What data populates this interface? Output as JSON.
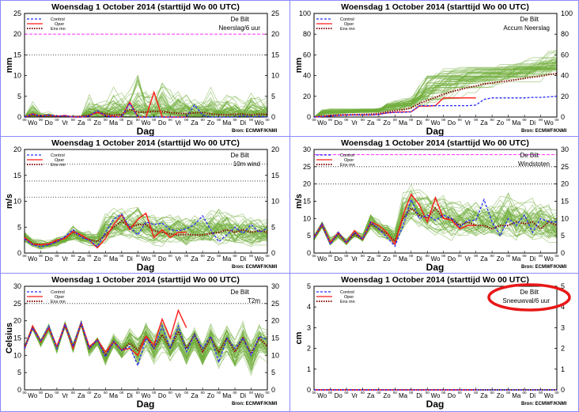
{
  "title": "Woensdag   1 October   2014  (starttijd  Wo 00 UTC)",
  "location": "De Bilt",
  "source": "Bron: ECMWF/KNMI",
  "legend": [
    "Control",
    "Oper",
    "Ens mn"
  ],
  "x_axis": {
    "xlabel": "Dag",
    "tick_label": "00",
    "days": [
      "Wo",
      "Do",
      "Vr",
      "Za",
      "Zo",
      "Ma",
      "Di",
      "Wo",
      "Do",
      "Vr",
      "Za",
      "Zo",
      "Ma",
      "Di",
      "Wo"
    ],
    "step_hours": 12
  },
  "colors": {
    "control": "#2a2aff",
    "oper": "#ff1a1a",
    "ensmean": "#8b1010",
    "ensemble": "#6fae3a",
    "magenta": "#ff44ff",
    "highlight": "#e81818"
  },
  "chart_data": [
    {
      "type": "line",
      "subtitle": "Neerslag/6 uur",
      "ylabel": "mm",
      "ylim": [
        0,
        25
      ],
      "yticks": [
        "0",
        "5",
        "10",
        "15",
        "20",
        "25"
      ],
      "ref_lines": [
        {
          "value": 20,
          "style": "magenta"
        },
        {
          "value": 15,
          "style": "dotted"
        }
      ],
      "skew": 3,
      "control": [
        0,
        0.7,
        0.2,
        0.5,
        0.2,
        0.3,
        0,
        0,
        0.3,
        1.5,
        0.3,
        0,
        0,
        3.3,
        0,
        0,
        0,
        0,
        0,
        0,
        0,
        2.9,
        0.5,
        0,
        0,
        0,
        0,
        0.4,
        0,
        0.2,
        0
      ],
      "oper": [
        0,
        0.8,
        0.2,
        0.5,
        0.2,
        0.4,
        0,
        0,
        0.3,
        1.2,
        0.3,
        0.2,
        0,
        3.6,
        0,
        0,
        6,
        0,
        0,
        0,
        0
      ],
      "ensmean": [
        0,
        0.4,
        0.3,
        0.3,
        0.2,
        0.2,
        0.1,
        0.2,
        0.5,
        1.1,
        0.8,
        0.5,
        0.6,
        1.8,
        1.2,
        1.2,
        1.4,
        1.3,
        1.1,
        0.9,
        0.8,
        1.0,
        1.1,
        0.7,
        0.6,
        0.5,
        0.7,
        0.7,
        0.5,
        0.7,
        0.6
      ],
      "ens_max": [
        0,
        5.5,
        1.5,
        2.5,
        0.5,
        0.5,
        0.3,
        0.5,
        9,
        7,
        6,
        11,
        9,
        10,
        18.5,
        13,
        10,
        16.5,
        11,
        11,
        11,
        10,
        8,
        12,
        7,
        10,
        9,
        6,
        11.5,
        8,
        8
      ],
      "ens_min": [
        0,
        0,
        0,
        0,
        0,
        0,
        0,
        0,
        0,
        0,
        0,
        0,
        0,
        0,
        0,
        0,
        0,
        0,
        0,
        0,
        0,
        0,
        0,
        0,
        0,
        0,
        0,
        0,
        0,
        0,
        0
      ]
    },
    {
      "type": "line",
      "subtitle": "Accum Neerslag",
      "ylabel": "mm",
      "ylim": [
        0,
        100
      ],
      "yticks": [
        "0",
        "20",
        "40",
        "60",
        "80",
        "100"
      ],
      "ref_lines": [],
      "skew": 1,
      "monotone": true,
      "control": [
        0,
        0.5,
        1,
        1.5,
        2,
        2,
        2,
        2,
        2.5,
        4,
        4.5,
        4.5,
        5,
        11,
        11,
        11,
        11,
        11,
        11,
        11,
        11.5,
        17,
        18.5,
        18.5,
        18.5,
        18.5,
        18.5,
        19,
        19,
        19.5,
        20
      ],
      "oper": [
        0,
        0.5,
        1,
        1.5,
        2,
        2,
        2,
        2,
        2.5,
        4,
        4.5,
        5,
        5,
        10.5,
        10.5,
        11,
        18.5,
        18.5,
        18.5,
        18.5,
        18.5
      ],
      "ensmean": [
        0,
        1,
        1.5,
        2,
        2.2,
        2.4,
        2.6,
        2.8,
        3.5,
        5,
        6,
        7,
        9,
        13,
        16,
        19,
        22,
        24.5,
        26.5,
        28.5,
        30,
        32,
        33,
        34,
        35,
        36,
        37.5,
        38.5,
        39.5,
        41,
        42
      ],
      "ens_max": [
        0,
        8,
        9,
        9,
        9,
        9,
        9,
        9,
        10,
        16,
        18,
        20,
        22,
        35,
        48,
        52,
        55,
        55,
        56,
        56,
        57,
        57,
        57,
        58,
        58,
        60,
        62,
        64,
        67,
        72,
        74
      ],
      "ens_min": [
        0,
        0,
        0,
        0,
        0,
        0,
        0,
        0.5,
        1,
        2,
        2,
        2,
        2,
        3,
        3,
        4,
        4,
        5,
        6,
        7,
        8,
        10,
        11,
        12,
        14,
        15,
        16,
        17,
        17,
        18,
        18
      ]
    },
    {
      "type": "line",
      "subtitle": "10m wind",
      "ylabel": "m/s",
      "ylim": [
        0,
        20
      ],
      "yticks": [
        "0",
        "5",
        "10",
        "15",
        "20"
      ],
      "ref_lines": [
        {
          "value": 10.8,
          "style": "dotted"
        },
        {
          "value": 13.9,
          "style": "dotted"
        },
        {
          "value": 17.2,
          "style": "dotted"
        }
      ],
      "skew": 1.3,
      "control": [
        2.7,
        1.6,
        1.2,
        1.6,
        2.2,
        3.2,
        4.5,
        3,
        2.5,
        1.2,
        4,
        6.5,
        7.5,
        5,
        3.5,
        6,
        5.5,
        5.8,
        4.5,
        4.3,
        4.7,
        5.5,
        7.2,
        4.5,
        2.2,
        3.5,
        5,
        3.8,
        5.5,
        4,
        4.8
      ],
      "oper": [
        3,
        1.7,
        1.6,
        1.8,
        2.5,
        2.8,
        4.2,
        3.5,
        2.5,
        1,
        2.8,
        5.5,
        7.4,
        4.5,
        6.5,
        7.7,
        3,
        4.5,
        3,
        4,
        4
      ],
      "ensmean": [
        3,
        1.8,
        1.6,
        1.7,
        2.2,
        3,
        4,
        3.2,
        2.6,
        2.2,
        3.5,
        5,
        6.2,
        5,
        5.5,
        5.5,
        4.3,
        4,
        3.7,
        3.5,
        3.6,
        3.5,
        3.5,
        3.8,
        4,
        4.5,
        4,
        4.5,
        4,
        4.3,
        4
      ],
      "ens_max": [
        4.5,
        3,
        3,
        3,
        4,
        4,
        6,
        5,
        5,
        5,
        9,
        10,
        10,
        10,
        11,
        10,
        9,
        9,
        9,
        9,
        9,
        10,
        9,
        10,
        11,
        10,
        9,
        9,
        9,
        8,
        8
      ],
      "ens_min": [
        2,
        1,
        0.5,
        0.8,
        1,
        1.5,
        2,
        1.5,
        1,
        0.5,
        1,
        2,
        2,
        2,
        1.5,
        1.5,
        1,
        1,
        1,
        1,
        0.5,
        1,
        1,
        1,
        0.5,
        1,
        0.5,
        1,
        0.5,
        1,
        1
      ]
    },
    {
      "type": "line",
      "subtitle": "Windstoten",
      "ylabel": "m/s",
      "ylim": [
        0,
        30
      ],
      "yticks": [
        "0",
        "5",
        "10",
        "15",
        "20",
        "25",
        "30"
      ],
      "ref_lines": [
        {
          "value": 28.5,
          "style": "magenta"
        },
        {
          "value": 25,
          "style": "dotted"
        },
        {
          "value": 20,
          "style": "dotted"
        }
      ],
      "skew": 1.3,
      "control": [
        4.5,
        8.5,
        2.5,
        6,
        3,
        6,
        4,
        9,
        7,
        4.5,
        2,
        8,
        15.5,
        10,
        11,
        9.5,
        11,
        10,
        7.5,
        9.5,
        9.5,
        15.5,
        9,
        5,
        10,
        8,
        11,
        6,
        10,
        9,
        9
      ],
      "oper": [
        4.5,
        8.5,
        3,
        6,
        3,
        6.5,
        4,
        9,
        8,
        6,
        2.5,
        11,
        17,
        14,
        9,
        16,
        10,
        9.5,
        7,
        8,
        8
      ],
      "ensmean": [
        4.5,
        8,
        3,
        5.5,
        3,
        5.5,
        4,
        8.5,
        7,
        5.5,
        3.5,
        10,
        13,
        11,
        10,
        13,
        10,
        10,
        8,
        9,
        8,
        8,
        7,
        8,
        8,
        9,
        8.5,
        9,
        7,
        9,
        8
      ],
      "ens_max": [
        5.5,
        9.5,
        5,
        7,
        5,
        7.5,
        6,
        13,
        11,
        10,
        8,
        20,
        22.5,
        21,
        20,
        21,
        20,
        19,
        18,
        18,
        19,
        19,
        18,
        20,
        22,
        19,
        18,
        19,
        18,
        17,
        15
      ],
      "ens_min": [
        3.5,
        7,
        2,
        4,
        2,
        4,
        3,
        6,
        4,
        3,
        1.5,
        5,
        7,
        6,
        5,
        4,
        4,
        3,
        3,
        3,
        3,
        3,
        3,
        2,
        3,
        2,
        3,
        2,
        3,
        2,
        2
      ]
    },
    {
      "type": "line",
      "subtitle": "T2m",
      "ylabel": "Celsius",
      "ylim": [
        0,
        30
      ],
      "yticks": [
        "0",
        "5",
        "10",
        "15",
        "20",
        "25",
        "30"
      ],
      "ref_lines": [
        {
          "value": 25,
          "style": "dotted"
        }
      ],
      "skew": 1,
      "control": [
        12,
        18,
        14,
        18.5,
        12,
        19,
        12.5,
        19.5,
        12,
        14.5,
        9.5,
        14,
        11.5,
        12.5,
        7,
        15,
        12,
        18.5,
        12,
        18.5,
        11,
        16,
        12,
        15.5,
        8,
        15,
        12,
        15,
        10,
        15.5,
        14.5
      ],
      "oper": [
        12,
        18.5,
        14,
        18,
        12.5,
        19,
        12,
        19.5,
        12.5,
        14.5,
        11,
        14,
        11.5,
        12,
        10,
        15.5,
        13,
        20.5,
        15,
        23,
        18
      ],
      "ensmean": [
        12,
        18,
        14,
        18,
        12.5,
        18.5,
        12.5,
        19,
        12,
        14.5,
        10,
        14,
        11.5,
        13.5,
        11.5,
        15.5,
        12,
        16,
        12,
        17,
        12,
        16,
        11,
        15,
        11,
        15,
        11,
        15,
        10.5,
        15,
        12.5
      ],
      "ens_max": [
        13,
        19,
        15,
        20,
        13.5,
        20.5,
        14,
        20.5,
        13.5,
        16,
        12,
        17,
        15,
        19,
        17,
        22,
        18,
        22,
        17,
        22,
        17,
        21,
        16,
        21,
        17,
        21,
        17,
        22,
        17,
        21,
        19.5
      ],
      "ens_min": [
        11.5,
        17,
        12,
        16,
        10,
        17,
        10,
        18,
        9,
        12,
        6,
        11,
        7,
        10,
        5,
        10,
        6,
        10,
        6,
        9,
        5,
        9,
        4,
        9,
        4,
        8,
        3,
        7,
        2,
        8,
        6
      ]
    },
    {
      "type": "line",
      "subtitle": "Sneeuwval/6 uur",
      "ylabel": "cm",
      "ylim": [
        0,
        5
      ],
      "yticks": [
        "0",
        "1",
        "2",
        "3",
        "4",
        "5"
      ],
      "ref_lines": [],
      "skew": 1,
      "highlighted": true,
      "control": [
        0,
        0,
        0,
        0,
        0,
        0,
        0,
        0,
        0,
        0,
        0,
        0,
        0,
        0,
        0,
        0,
        0,
        0,
        0,
        0,
        0,
        0,
        0,
        0,
        0,
        0,
        0,
        0,
        0,
        0,
        0
      ],
      "oper": [
        0,
        0,
        0,
        0,
        0,
        0,
        0,
        0,
        0,
        0,
        0,
        0,
        0,
        0,
        0,
        0,
        0,
        0,
        0,
        0,
        0
      ],
      "ensmean": [
        0,
        0,
        0,
        0,
        0,
        0,
        0,
        0,
        0,
        0,
        0,
        0,
        0,
        0,
        0,
        0,
        0,
        0,
        0,
        0,
        0,
        0,
        0,
        0,
        0,
        0,
        0,
        0,
        0,
        0,
        0
      ],
      "ens_max": [
        0,
        0,
        0,
        0,
        0,
        0,
        0,
        0,
        0,
        0,
        0,
        0,
        0,
        0,
        0,
        0,
        0,
        0,
        0,
        0,
        0,
        0,
        0,
        0,
        0,
        0,
        0,
        0,
        0,
        0,
        0
      ],
      "ens_min": [
        0,
        0,
        0,
        0,
        0,
        0,
        0,
        0,
        0,
        0,
        0,
        0,
        0,
        0,
        0,
        0,
        0,
        0,
        0,
        0,
        0,
        0,
        0,
        0,
        0,
        0,
        0,
        0,
        0,
        0,
        0
      ]
    }
  ]
}
